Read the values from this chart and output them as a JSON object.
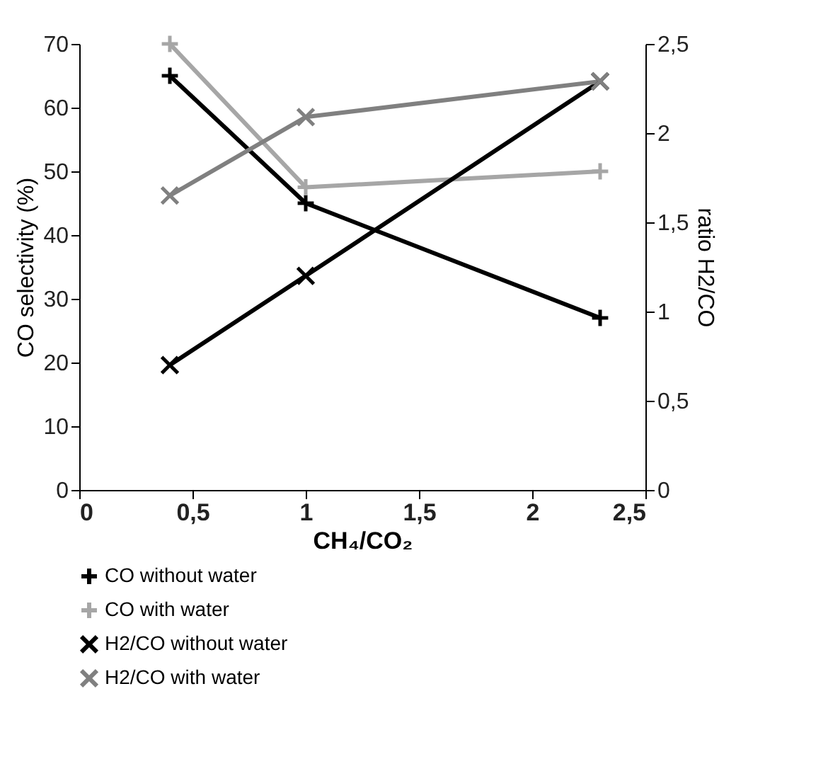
{
  "chart_data": {
    "type": "line",
    "xlabel": "CH₄/CO₂",
    "ylabel": "CO selectivity (%)",
    "y2label": "ratio H2/CO",
    "xlim": [
      0,
      2.5
    ],
    "xticks": [
      0,
      {
        "value": 0.5,
        "label": "0,5"
      },
      1,
      {
        "value": 1.5,
        "label": "1,5"
      },
      2,
      {
        "value": 2.5,
        "label": "2,5"
      }
    ],
    "ylim": [
      0,
      70
    ],
    "yticks": [
      0,
      10,
      20,
      30,
      40,
      50,
      60,
      70
    ],
    "y2lim": [
      0,
      2.5
    ],
    "y2ticks": [
      0,
      {
        "value": 0.5,
        "label": "0,5"
      },
      1,
      {
        "value": 1.5,
        "label": "1,5"
      },
      2,
      {
        "value": 2.5,
        "label": "2,5"
      }
    ],
    "x": [
      0.4,
      1,
      2.3
    ],
    "grid": false,
    "legend": "bottom",
    "line_style": "solid",
    "series": [
      {
        "name": "CO without water",
        "color": "#000000",
        "marker": "cross",
        "values": [
          65,
          45,
          27
        ]
      },
      {
        "name": "CO with water",
        "color": "#a6a6a6",
        "marker": "cross",
        "values": [
          70,
          47.5,
          50
        ]
      },
      {
        "name": "H2/CO without water",
        "color": "#000000",
        "marker": "x",
        "axis": "y2",
        "values": [
          0.7,
          1.2,
          2.29
        ]
      },
      {
        "name": "H2/CO with water",
        "color": "#808080",
        "marker": "x",
        "axis": "y2",
        "values": [
          1.65,
          2.09,
          2.29
        ]
      }
    ]
  }
}
